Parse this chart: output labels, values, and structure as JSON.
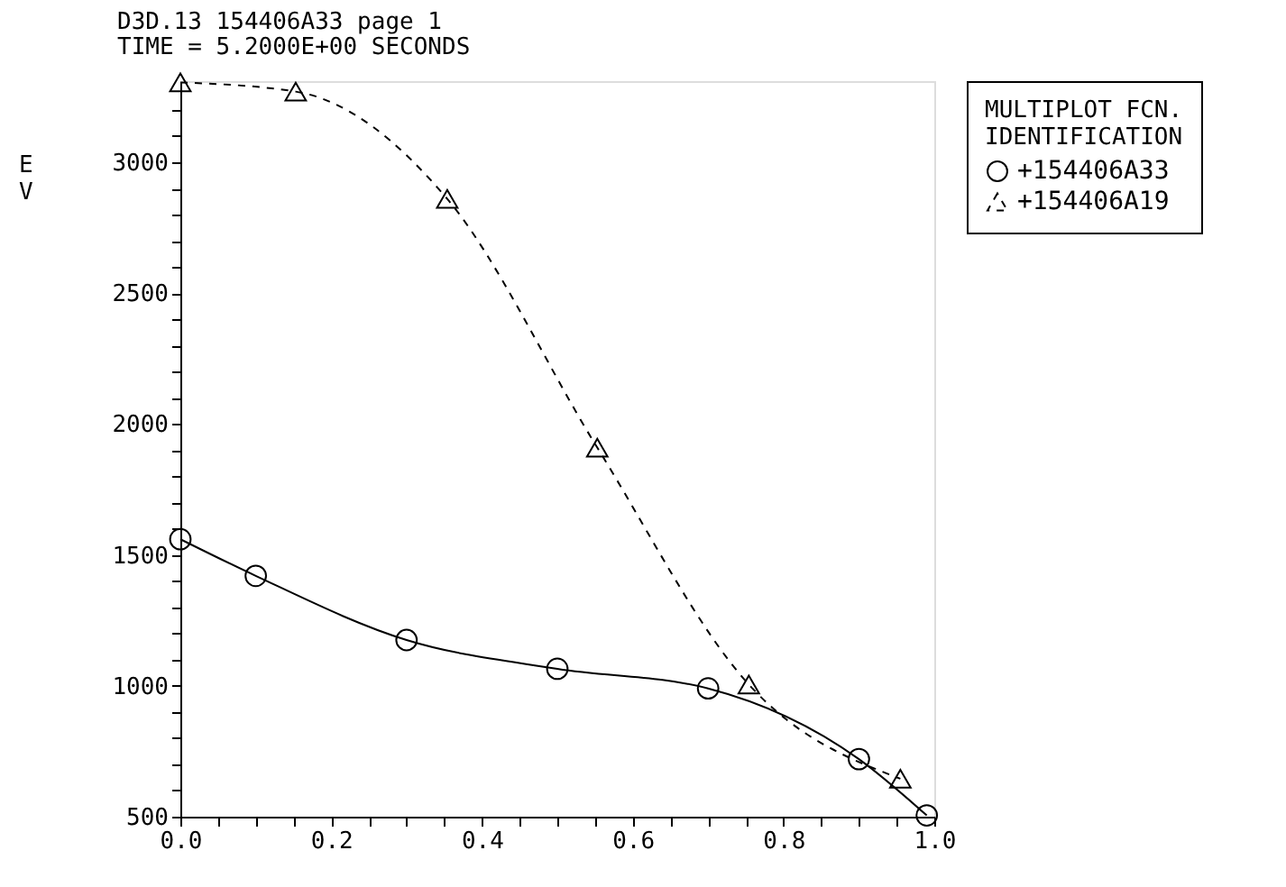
{
  "chart_data": {
    "type": "line",
    "title": "D3D.13 154406A33 page 1",
    "subtitle": "TIME = 5.2000E+00 SECONDS",
    "ylabel": "EV",
    "legend_title": "MULTIPLOT FCN. IDENTIFICATION",
    "legend": "right",
    "grid": false,
    "xlim": [
      0,
      1
    ],
    "ylim": [
      500,
      3310
    ],
    "xticks": [
      {
        "value": 0,
        "label": "0.0"
      },
      {
        "value": 0.05,
        "label": null
      },
      {
        "value": 0.1,
        "label": null
      },
      {
        "value": 0.15,
        "label": null
      },
      {
        "value": 0.2,
        "label": "0.2"
      },
      {
        "value": 0.25,
        "label": null
      },
      {
        "value": 0.3,
        "label": null
      },
      {
        "value": 0.35,
        "label": null
      },
      {
        "value": 0.4,
        "label": "0.4"
      },
      {
        "value": 0.45,
        "label": null
      },
      {
        "value": 0.5,
        "label": null
      },
      {
        "value": 0.55,
        "label": null
      },
      {
        "value": 0.6,
        "label": "0.6"
      },
      {
        "value": 0.65,
        "label": null
      },
      {
        "value": 0.7,
        "label": null
      },
      {
        "value": 0.75,
        "label": null
      },
      {
        "value": 0.8,
        "label": "0.8"
      },
      {
        "value": 0.85,
        "label": null
      },
      {
        "value": 0.9,
        "label": null
      },
      {
        "value": 0.95,
        "label": null
      },
      {
        "value": 1,
        "label": "1.0"
      }
    ],
    "yticks": [
      500,
      {
        "value": 600,
        "label": null
      },
      {
        "value": 700,
        "label": null
      },
      {
        "value": 800,
        "label": null
      },
      {
        "value": 900,
        "label": null
      },
      1000,
      {
        "value": 1100,
        "label": null
      },
      {
        "value": 1200,
        "label": null
      },
      {
        "value": 1300,
        "label": null
      },
      {
        "value": 1400,
        "label": null
      },
      1500,
      {
        "value": 1600,
        "label": null
      },
      {
        "value": 1700,
        "label": null
      },
      {
        "value": 1800,
        "label": null
      },
      {
        "value": 1900,
        "label": null
      },
      2000,
      {
        "value": 2100,
        "label": null
      },
      {
        "value": 2200,
        "label": null
      },
      {
        "value": 2300,
        "label": null
      },
      {
        "value": 2400,
        "label": null
      },
      2500,
      {
        "value": 2600,
        "label": null
      },
      {
        "value": 2700,
        "label": null
      },
      {
        "value": 2800,
        "label": null
      },
      {
        "value": 2900,
        "label": null
      },
      3000,
      {
        "value": 3100,
        "label": null
      },
      {
        "value": 3200,
        "label": null
      }
    ],
    "series": [
      {
        "name": "+154406A33",
        "color": "#000000",
        "marker": "circle",
        "line_style": "solid",
        "x": [
          0,
          0.1,
          0.3,
          0.5,
          0.7,
          0.9,
          0.99
        ],
        "values": [
          1560,
          1420,
          1175,
          1065,
          990,
          720,
          505
        ]
      },
      {
        "name": "+154406A19",
        "color": "#000000",
        "marker": "triangle",
        "line_style": "dashed",
        "x": [
          0,
          0.153,
          0.354,
          0.553,
          0.754,
          0.955
        ],
        "values": [
          3305,
          3270,
          2860,
          1910,
          1005,
          645
        ]
      }
    ]
  }
}
